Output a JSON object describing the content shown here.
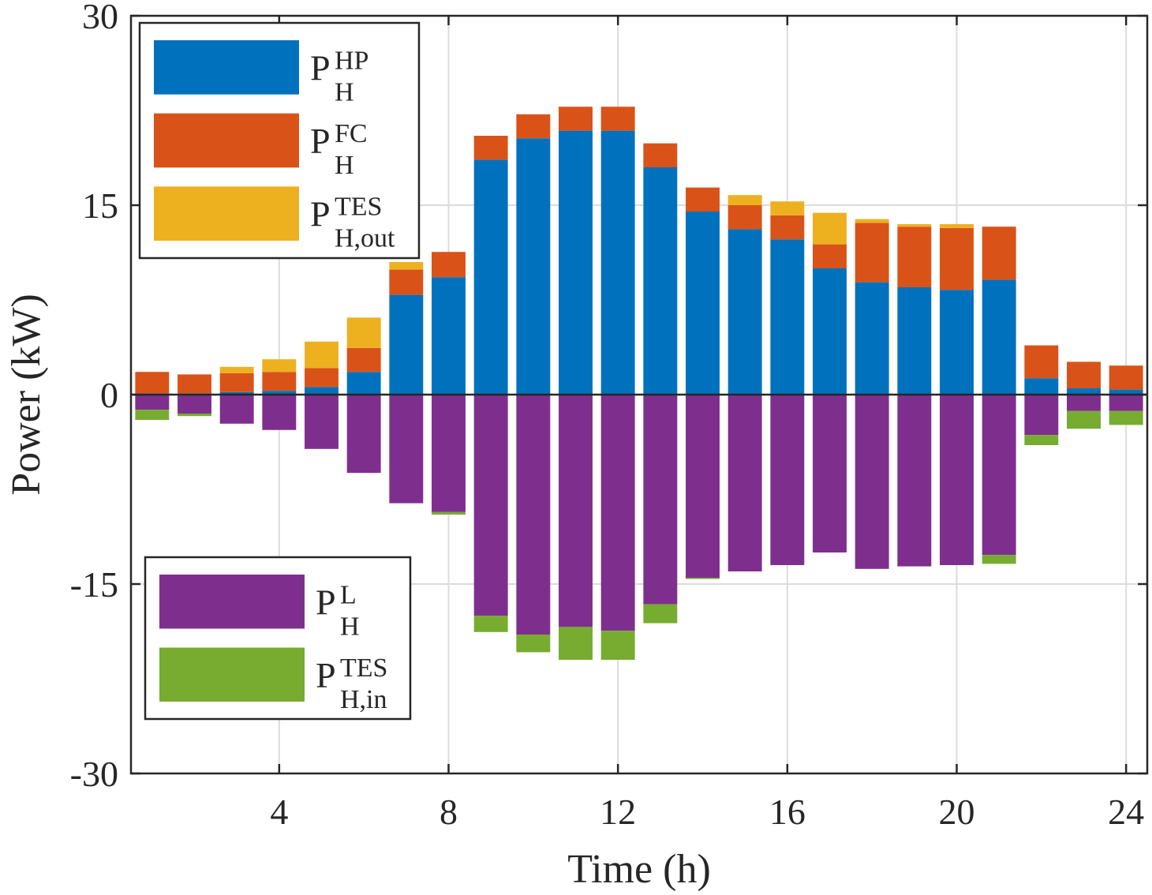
{
  "chart_data": {
    "type": "bar",
    "stacked": true,
    "xlabel": "Time (h)",
    "ylabel": "Power (kW)",
    "xlim": [
      0.5,
      24.5
    ],
    "ylim": [
      -30,
      30
    ],
    "xticks": [
      4,
      8,
      12,
      16,
      20,
      24
    ],
    "yticks": [
      30,
      15,
      0,
      -15,
      -30
    ],
    "grid": true,
    "x": [
      1,
      2,
      3,
      4,
      5,
      6,
      7,
      8,
      9,
      10,
      11,
      12,
      13,
      14,
      15,
      16,
      17,
      18,
      19,
      20,
      21,
      22,
      23,
      24
    ],
    "positive_series": [
      {
        "base": "P",
        "sup": "HP",
        "sub": "H",
        "color": "#0072BD",
        "values": [
          0.1,
          0.1,
          0.2,
          0.3,
          0.6,
          1.8,
          7.9,
          9.3,
          18.6,
          20.3,
          20.9,
          20.9,
          18.0,
          14.5,
          13.1,
          12.3,
          10.0,
          8.9,
          8.5,
          8.3,
          9.1,
          1.3,
          0.5,
          0.4
        ]
      },
      {
        "base": "P",
        "sup": "FC",
        "sub": "H",
        "color": "#D95319",
        "values": [
          1.7,
          1.5,
          1.5,
          1.5,
          1.5,
          1.9,
          2.0,
          2.0,
          1.9,
          1.9,
          1.9,
          1.9,
          1.9,
          1.9,
          1.9,
          1.9,
          1.9,
          4.7,
          4.8,
          4.9,
          4.2,
          2.6,
          2.1,
          1.9
        ]
      },
      {
        "base": "P",
        "sup": "TES",
        "sub": "H,out",
        "color": "#EDB120",
        "values": [
          0,
          0,
          0.5,
          1.0,
          2.1,
          2.4,
          0.6,
          0,
          0,
          0,
          0,
          0,
          0,
          0,
          0.8,
          1.1,
          2.5,
          0.3,
          0.2,
          0.3,
          0,
          0,
          0,
          0
        ]
      }
    ],
    "negative_series": [
      {
        "base": "P",
        "sup": "L",
        "sub": "H",
        "color": "#7E2F8E",
        "values": [
          -1.2,
          -1.5,
          -2.3,
          -2.8,
          -4.3,
          -6.2,
          -8.6,
          -9.3,
          -17.5,
          -19.0,
          -18.4,
          -18.7,
          -16.6,
          -14.5,
          -14.0,
          -13.5,
          -12.5,
          -13.8,
          -13.6,
          -13.5,
          -12.7,
          -3.2,
          -1.3,
          -1.3
        ]
      },
      {
        "base": "P",
        "sup": "TES",
        "sub": "H,in",
        "color": "#77AC30",
        "values": [
          -0.8,
          -0.2,
          0,
          0,
          0,
          0,
          0,
          -0.2,
          -1.3,
          -1.4,
          -2.6,
          -2.3,
          -1.5,
          -0.1,
          0,
          0,
          0,
          0,
          0,
          0,
          -0.7,
          -0.8,
          -1.4,
          -1.1
        ]
      }
    ],
    "legend_positive": "top-left",
    "legend_negative": "bottom-left"
  }
}
